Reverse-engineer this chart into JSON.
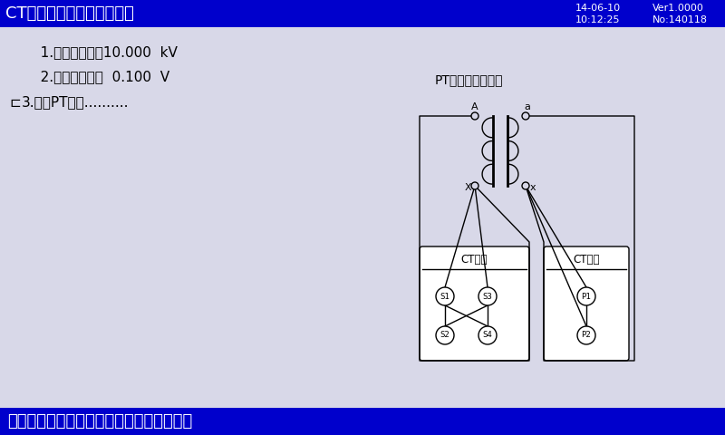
{
  "title": "CT互感器现场校验测试系统",
  "title_color": "#ffffff",
  "header_bg": "#0000cc",
  "main_bg": "#d8d8e8",
  "footer_bg": "#0000cc",
  "footer_text": "按【回车】开始测试，【退出】返回主菜单",
  "footer_color": "#ffffff",
  "header_right1": "14-06-10",
  "header_right2": "10:12:25",
  "header_right3": "Ver1.0000",
  "header_right4": "No:140118",
  "line1": "   1.高额定电压：10.000  kV",
  "line2": "   2.低额定电压：  0.100  V",
  "line3": "3.开始PT测试..........",
  "diagram_title": "PT变比测试接线图",
  "line_color": "#000000",
  "text_color": "#000000"
}
